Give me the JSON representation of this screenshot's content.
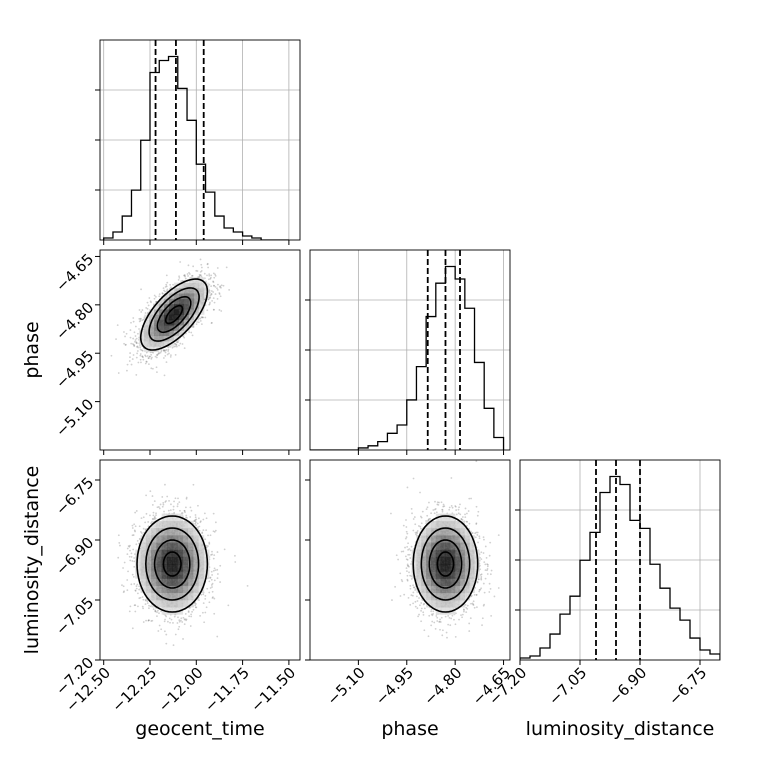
{
  "chart_data": {
    "type": "corner",
    "parameters": [
      "geocent_time",
      "phase",
      "luminosity_distance"
    ],
    "axis_labels": {
      "geocent_time": "geocent_time",
      "phase": "phase",
      "luminosity_distance": "luminosity_distance"
    },
    "ranges": {
      "geocent_time": [
        -12.52,
        -11.44
      ],
      "phase": [
        -5.25,
        -4.63
      ],
      "luminosity_distance": [
        -7.2,
        -6.7
      ]
    },
    "ticks": {
      "geocent_time": [
        {
          "value": -12.5,
          "label": "−12.50"
        },
        {
          "value": -12.25,
          "label": "−12.25"
        },
        {
          "value": -12.0,
          "label": "−12.00"
        },
        {
          "value": -11.75,
          "label": "−11.75"
        },
        {
          "value": -11.5,
          "label": "−11.50"
        }
      ],
      "phase": [
        {
          "value": -5.1,
          "label": "−5.10"
        },
        {
          "value": -4.95,
          "label": "−4.95"
        },
        {
          "value": -4.8,
          "label": "−4.80"
        },
        {
          "value": -4.65,
          "label": "−4.65"
        }
      ],
      "luminosity_distance": [
        {
          "value": -7.2,
          "label": "−7.20"
        },
        {
          "value": -7.05,
          "label": "−7.05"
        },
        {
          "value": -6.9,
          "label": "−6.90"
        },
        {
          "value": -6.75,
          "label": "−6.75"
        }
      ]
    },
    "quantiles": {
      "geocent_time": [
        -12.22,
        -12.11,
        -11.96
      ],
      "phase": [
        -4.885,
        -4.83,
        -4.785
      ],
      "luminosity_distance": [
        -7.01,
        -6.96,
        -6.9
      ]
    },
    "histograms": {
      "geocent_time": {
        "edges": [
          -12.5,
          -12.45,
          -12.4,
          -12.35,
          -12.3,
          -12.25,
          -12.2,
          -12.15,
          -12.1,
          -12.05,
          -12.0,
          -11.95,
          -11.9,
          -11.85,
          -11.8,
          -11.75,
          -11.7,
          -11.65,
          -11.6,
          -11.55,
          -11.5
        ],
        "counts": [
          1,
          4,
          12,
          25,
          50,
          84,
          90,
          92,
          76,
          60,
          38,
          24,
          12,
          6,
          4,
          2,
          1,
          0,
          0,
          0
        ]
      },
      "phase": {
        "edges": [
          -5.25,
          -5.22,
          -5.19,
          -5.16,
          -5.13,
          -5.1,
          -5.07,
          -5.04,
          -5.01,
          -4.98,
          -4.95,
          -4.92,
          -4.89,
          -4.86,
          -4.83,
          -4.8,
          -4.77,
          -4.74,
          -4.71,
          -4.68,
          -4.65
        ],
        "counts": [
          0,
          0,
          0,
          0,
          0,
          1,
          2,
          4,
          8,
          12,
          24,
          40,
          64,
          80,
          88,
          82,
          68,
          42,
          20,
          6
        ]
      },
      "luminosity_distance": {
        "edges": [
          -7.2,
          -7.175,
          -7.15,
          -7.125,
          -7.1,
          -7.075,
          -7.05,
          -7.025,
          -7.0,
          -6.975,
          -6.95,
          -6.925,
          -6.9,
          -6.875,
          -6.85,
          -6.825,
          -6.8,
          -6.775,
          -6.75,
          -6.725,
          -6.7
        ],
        "counts": [
          1,
          2,
          6,
          13,
          23,
          32,
          50,
          64,
          84,
          92,
          88,
          70,
          66,
          48,
          36,
          26,
          20,
          11,
          5,
          3
        ]
      }
    },
    "joint": {
      "phase_vs_geocent_time": {
        "center": [
          -12.12,
          -4.83
        ],
        "sigma": [
          0.09,
          0.055
        ],
        "rho": 0.65
      },
      "luminosity_distance_vs_geocent_time": {
        "center": [
          -12.13,
          -6.96
        ],
        "sigma": [
          0.095,
          0.06
        ],
        "rho": 0.0
      },
      "luminosity_distance_vs_phase": {
        "center": [
          -4.83,
          -6.96
        ],
        "sigma": [
          0.05,
          0.06
        ],
        "rho": 0.0
      }
    }
  }
}
